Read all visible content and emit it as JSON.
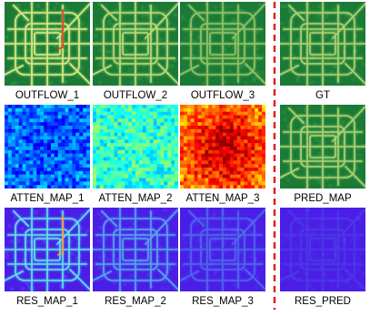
{
  "panels": [
    {
      "label": "OUTFLOW_1"
    },
    {
      "label": "OUTFLOW_2"
    },
    {
      "label": "OUTFLOW_3"
    },
    {
      "label": "GT"
    },
    {
      "label": "ATTEN_MAP_1"
    },
    {
      "label": "ATTEN_MAP_2"
    },
    {
      "label": "ATTEN_MAP_3"
    },
    {
      "label": "PRED_MAP"
    },
    {
      "label": "RES_MAP_1"
    },
    {
      "label": "RES_MAP_2"
    },
    {
      "label": "RES_MAP_3"
    },
    {
      "label": "RES_PRED"
    }
  ]
}
